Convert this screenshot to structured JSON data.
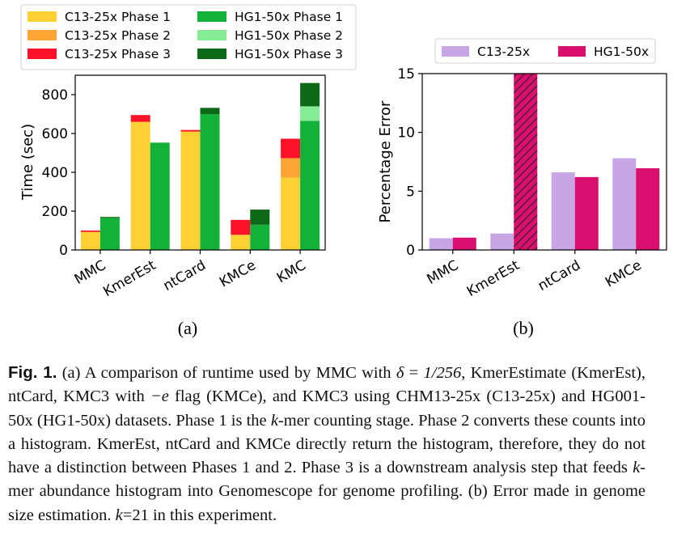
{
  "chart_data": [
    {
      "type": "bar",
      "stacked": true,
      "panel_label": "(a)",
      "ylabel": "Time (sec)",
      "xlabel": "",
      "ylim": [
        0,
        900
      ],
      "yticks": [
        0,
        200,
        400,
        600,
        800
      ],
      "categories": [
        "MMC",
        "KmerEst",
        "ntCard",
        "KMCe",
        "KMC"
      ],
      "legend_position": "top-left, above plot",
      "groups": [
        {
          "name": "C13-25x",
          "series": [
            {
              "name": "C13-25x Phase 1",
              "color": "#fdd035",
              "values": [
                93,
                660,
                610,
                78,
                373
              ]
            },
            {
              "name": "C13-25x Phase 2",
              "color": "#ffa536",
              "values": [
                0,
                0,
                0,
                0,
                100
              ]
            },
            {
              "name": "C13-25x Phase 3",
              "color": "#fc1129",
              "values": [
                7,
                35,
                8,
                77,
                100
              ]
            }
          ]
        },
        {
          "name": "HG1-50x",
          "series": [
            {
              "name": "HG1-50x Phase 1",
              "color": "#13b13a",
              "values": [
                165,
                553,
                700,
                130,
                665
              ]
            },
            {
              "name": "HG1-50x Phase 2",
              "color": "#85ec95",
              "values": [
                0,
                0,
                0,
                0,
                75
              ]
            },
            {
              "name": "HG1-50x Phase 3",
              "color": "#0c6918",
              "values": [
                5,
                0,
                32,
                78,
                120
              ]
            }
          ]
        }
      ]
    },
    {
      "type": "bar",
      "panel_label": "(b)",
      "ylabel": "Percentage Error",
      "xlabel": "",
      "ylim": [
        0,
        15
      ],
      "yticks": [
        0,
        5,
        10,
        15
      ],
      "categories": [
        "MMC",
        "KmerEst",
        "ntCard",
        "KMCe"
      ],
      "legend_position": "top, above plot",
      "series": [
        {
          "name": "C13-25x",
          "color": "#c8a6e6",
          "values": [
            1.0,
            1.4,
            6.6,
            7.8
          ]
        },
        {
          "name": "HG1-50x",
          "color": "#d80f6c",
          "values": [
            1.05,
            15,
            6.2,
            6.95
          ],
          "hatched_clipped_index": 1
        }
      ]
    }
  ],
  "caption": {
    "label": "Fig. 1.",
    "parts": [
      {
        "t": " (a) A comparison of runtime used by MMC with "
      },
      {
        "m": "δ"
      },
      {
        "t": " = "
      },
      {
        "m": "1/256"
      },
      {
        "t": ", KmerEstimate (KmerEst), ntCard, KMC3 with "
      },
      {
        "m": "−e"
      },
      {
        "t": " flag (KMCe), and KMC3 using CHM13-25x (C13-25x) and HG001-50x (HG1-50x) datasets. Phase 1 is the "
      },
      {
        "m": "k"
      },
      {
        "t": "-mer counting stage. Phase 2 converts these counts into a histogram. KmerEst, ntCard and KMCe directly return the histogram, therefore, they do not have a distinction between Phases 1 and 2. Phase 3 is a downstream analysis step that feeds "
      },
      {
        "m": "k"
      },
      {
        "t": "-mer abundance histogram into Genomescope for genome profiling. (b) Error made in genome size estimation. "
      },
      {
        "m": "k"
      },
      {
        "t": "=21 in this experiment."
      }
    ]
  }
}
